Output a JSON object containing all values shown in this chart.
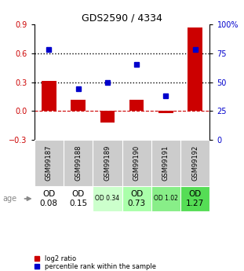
{
  "title": "GDS2590 / 4334",
  "samples": [
    "GSM99187",
    "GSM99188",
    "GSM99189",
    "GSM99190",
    "GSM99191",
    "GSM99192"
  ],
  "log2_ratio": [
    0.31,
    0.12,
    -0.12,
    0.12,
    -0.02,
    0.87
  ],
  "percentile_rank": [
    0.78,
    0.44,
    0.5,
    0.65,
    0.38,
    0.78
  ],
  "bar_color": "#cc0000",
  "dot_color": "#0000cc",
  "ylim_left": [
    -0.3,
    0.9
  ],
  "ylim_right": [
    0,
    100
  ],
  "yticks_left": [
    -0.3,
    0.0,
    0.3,
    0.6,
    0.9
  ],
  "yticks_right": [
    0,
    25,
    50,
    75,
    100
  ],
  "hline_y": [
    0.3,
    0.6
  ],
  "age_labels": [
    "OD\n0.08",
    "OD\n0.15",
    "OD 0.34",
    "OD\n0.73",
    "OD 1.02",
    "OD\n1.27"
  ],
  "age_bg_colors": [
    "#ffffff",
    "#ffffff",
    "#ccffcc",
    "#aaffaa",
    "#88ee88",
    "#55dd55"
  ],
  "zero_line_color": "#cc0000",
  "background_plot": "#ffffff",
  "background_table_gsm": "#cccccc",
  "legend_red_label": "log2 ratio",
  "legend_blue_label": "percentile rank within the sample"
}
